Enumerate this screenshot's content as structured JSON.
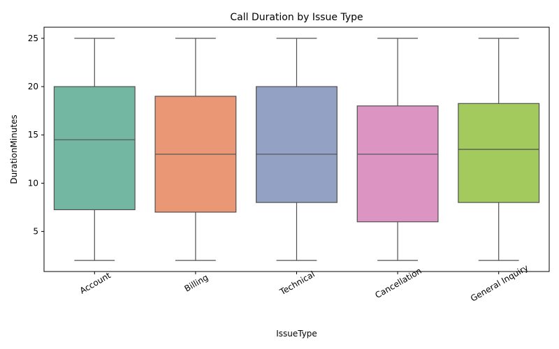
{
  "chart_data": {
    "type": "box",
    "title": "Call Duration by Issue Type",
    "xlabel": "IssueType",
    "ylabel": "DurationMinutes",
    "ylim": [
      0.85,
      26.15
    ],
    "yticks": [
      5,
      10,
      15,
      20,
      25
    ],
    "grid": false,
    "legend": "none",
    "categories": [
      "Account",
      "Billing",
      "Technical",
      "Cancellation",
      "General Inquiry"
    ],
    "boxes": [
      {
        "category": "Account",
        "min": 2,
        "q1": 7.25,
        "median": 14.5,
        "q3": 20,
        "max": 25,
        "color": "#73b7a3"
      },
      {
        "category": "Billing",
        "min": 2,
        "q1": 7,
        "median": 13,
        "q3": 19,
        "max": 25,
        "color": "#e99775"
      },
      {
        "category": "Technical",
        "min": 2,
        "q1": 8,
        "median": 13,
        "q3": 20,
        "max": 25,
        "color": "#92a1c4"
      },
      {
        "category": "Cancellation",
        "min": 2,
        "q1": 6,
        "median": 13,
        "q3": 18,
        "max": 25,
        "color": "#dc95c3"
      },
      {
        "category": "General Inquiry",
        "min": 2,
        "q1": 8,
        "median": 13.5,
        "q3": 18.25,
        "max": 25,
        "color": "#a2ca5d"
      }
    ]
  }
}
